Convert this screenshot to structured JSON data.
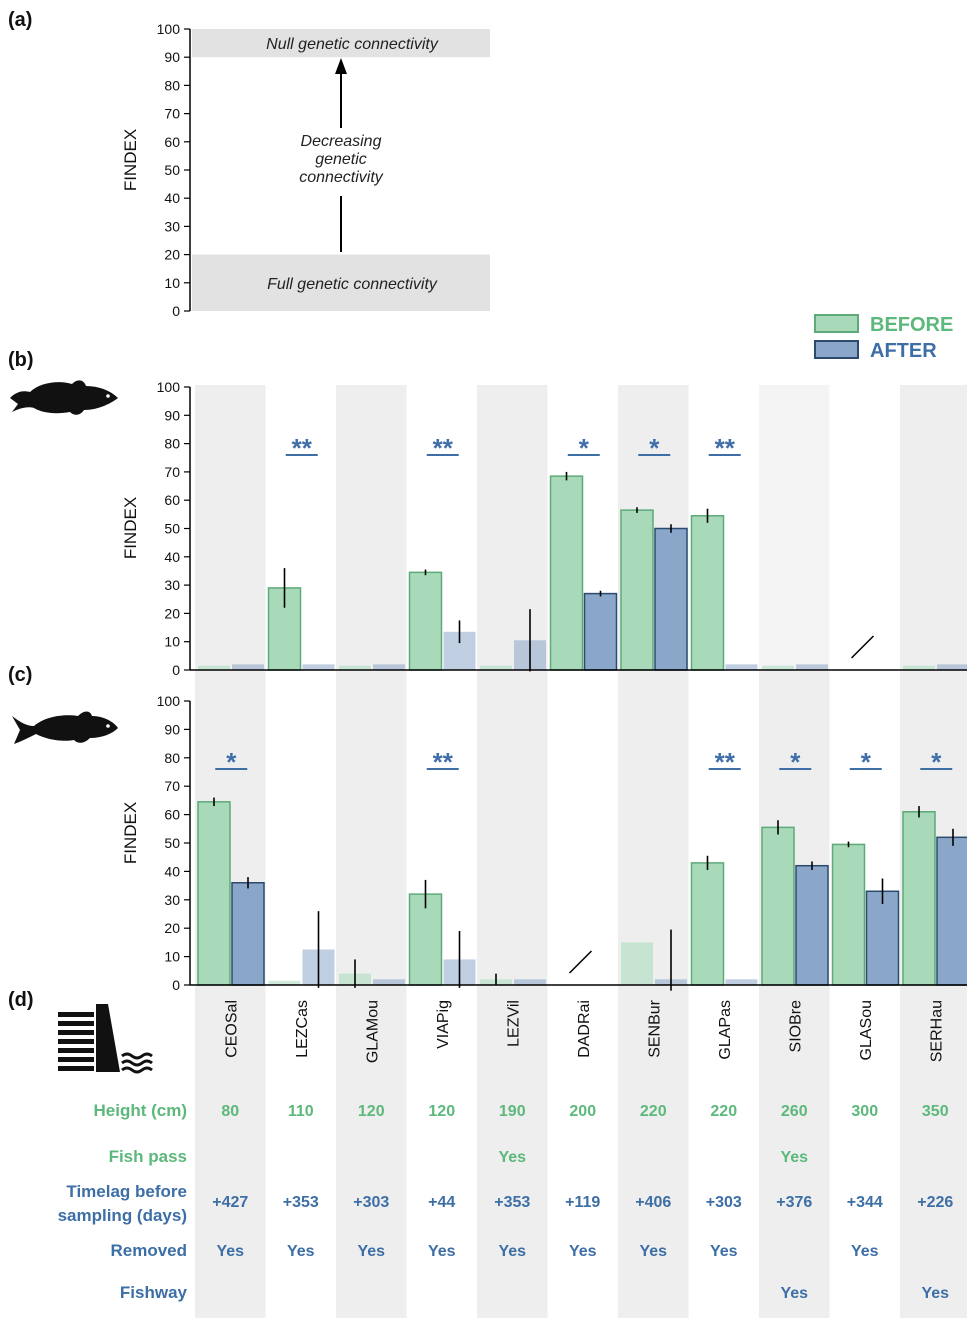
{
  "panels": {
    "a_label": "(a)",
    "b_label": "(b)",
    "c_label": "(c)",
    "d_label": "(d)"
  },
  "colors": {
    "before_fill": "#a8dab9",
    "before_stroke": "#5ea97a",
    "after_fill": "#8aa7c9",
    "after_stroke": "#2b4a6e",
    "green_text": "#5cb87b",
    "blue_text": "#3d6fa6",
    "shade": "#eeeeee",
    "band": "#e2e2e2"
  },
  "legend": {
    "before": "BEFORE",
    "after": "AFTER"
  },
  "panel_a": {
    "ylabel": "FINDEX",
    "null_label": "Null genetic connectivity",
    "full_label": "Full genetic connectivity",
    "middle_label": [
      "Decreasing",
      "genetic",
      "connectivity"
    ],
    "null_range": [
      90,
      100
    ],
    "full_range": [
      0,
      20
    ]
  },
  "chart_data": [
    {
      "type": "bar",
      "panel": "(b)",
      "ylabel": "FINDEX",
      "ylim": [
        0,
        100
      ],
      "yticks": [
        0,
        10,
        20,
        30,
        40,
        50,
        60,
        70,
        80,
        90,
        100
      ],
      "categories": [
        "CEOSal",
        "LEZCas",
        "GLAMou",
        "VIAPig",
        "LEZVil",
        "DADRai",
        "SENBur",
        "GLAPas",
        "SIOBre",
        "GLASou",
        "SERHau"
      ],
      "series": [
        {
          "name": "BEFORE",
          "values": [
            1.5,
            29,
            1.5,
            34.5,
            1.5,
            68.5,
            56.5,
            54.5,
            1.5,
            null,
            1.5
          ],
          "errors": [
            null,
            7,
            null,
            1,
            null,
            1.5,
            1,
            2.5,
            null,
            null,
            null
          ],
          "faded": [
            true,
            false,
            true,
            false,
            true,
            false,
            false,
            false,
            true,
            false,
            true
          ]
        },
        {
          "name": "AFTER",
          "values": [
            2,
            2,
            2,
            13.5,
            10.5,
            27,
            50,
            2,
            2,
            null,
            2
          ],
          "errors": [
            null,
            null,
            null,
            4,
            11,
            1,
            1.5,
            null,
            null,
            null,
            null
          ],
          "faded": [
            true,
            true,
            true,
            true,
            true,
            false,
            false,
            true,
            true,
            false,
            true
          ]
        }
      ],
      "significance": [
        "",
        "**",
        "",
        "**",
        "",
        "*",
        "*",
        "**",
        "",
        "",
        ""
      ],
      "missing": [
        9
      ]
    },
    {
      "type": "bar",
      "panel": "(c)",
      "ylabel": "FINDEX",
      "ylim": [
        0,
        100
      ],
      "yticks": [
        0,
        10,
        20,
        30,
        40,
        50,
        60,
        70,
        80,
        90,
        100
      ],
      "categories": [
        "CEOSal",
        "LEZCas",
        "GLAMou",
        "VIAPig",
        "LEZVil",
        "DADRai",
        "SENBur",
        "GLAPas",
        "SIOBre",
        "GLASou",
        "SERHau"
      ],
      "series": [
        {
          "name": "BEFORE",
          "values": [
            64.5,
            1.5,
            4,
            32,
            2,
            null,
            15,
            43,
            55.5,
            49.5,
            61
          ],
          "errors": [
            1.5,
            null,
            5,
            5,
            2,
            null,
            null,
            2.5,
            2.5,
            1,
            2
          ],
          "faded": [
            false,
            true,
            true,
            false,
            true,
            false,
            true,
            false,
            false,
            false,
            false
          ]
        },
        {
          "name": "AFTER",
          "values": [
            36,
            12.5,
            2,
            9,
            2,
            null,
            2,
            2,
            42,
            33,
            52
          ],
          "errors": [
            2,
            13.5,
            null,
            10,
            null,
            null,
            17.5,
            null,
            1.5,
            4.5,
            3
          ],
          "faded": [
            false,
            true,
            true,
            true,
            true,
            false,
            true,
            true,
            false,
            false,
            false
          ]
        }
      ],
      "significance": [
        "*",
        "",
        "",
        "**",
        "",
        "",
        "",
        "**",
        "*",
        "*",
        "*"
      ],
      "missing": [
        5
      ]
    }
  ],
  "table": {
    "rows": [
      {
        "label": [
          "Height (cm)"
        ],
        "color": "green",
        "values": [
          "80",
          "110",
          "120",
          "120",
          "190",
          "200",
          "220",
          "220",
          "260",
          "300",
          "350"
        ]
      },
      {
        "label": [
          "Fish pass"
        ],
        "color": "green",
        "values": [
          "",
          "",
          "",
          "",
          "Yes",
          "",
          "",
          "",
          "Yes",
          "",
          ""
        ]
      },
      {
        "label": [
          "Timelag before",
          "sampling (days)"
        ],
        "color": "blue",
        "values": [
          "+427",
          "+353",
          "+303",
          "+44",
          "+353",
          "+119",
          "+406",
          "+303",
          "+376",
          "+344",
          "+226"
        ]
      },
      {
        "label": [
          "Removed"
        ],
        "color": "blue",
        "values": [
          "Yes",
          "Yes",
          "Yes",
          "Yes",
          "Yes",
          "Yes",
          "Yes",
          "Yes",
          "",
          "Yes",
          ""
        ]
      },
      {
        "label": [
          "Fishway"
        ],
        "color": "blue",
        "values": [
          "",
          "",
          "",
          "",
          "",
          "",
          "",
          "",
          "Yes",
          "",
          "Yes"
        ]
      }
    ]
  },
  "icons": [
    "fish-icon-b",
    "fish-icon-c",
    "dam-icon"
  ]
}
